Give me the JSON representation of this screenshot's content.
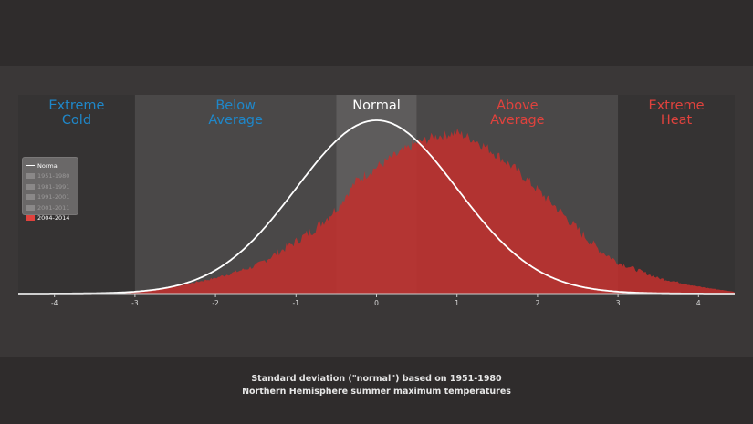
{
  "chart_data": {
    "type": "area",
    "xlabel": "Standard deviation (\"normal\") based on 1951-1980",
    "subtitle": "Northern Hemisphere summer maximum temperatures",
    "xlim": [
      -4.45,
      4.45
    ],
    "x_ticks": [
      "-4",
      "-3",
      "-2",
      "-1",
      "0",
      "1",
      "2",
      "3",
      "4"
    ],
    "bands": [
      {
        "line1": "Extreme",
        "line2": "Cold",
        "from": -4.45,
        "to": -3,
        "color": "#1f87c9",
        "fill": "#353333"
      },
      {
        "line1": "Below",
        "line2": "Average",
        "from": -3,
        "to": -0.5,
        "color": "#1f87c9",
        "fill": "#4a4848"
      },
      {
        "line1": "Normal",
        "line2": "",
        "from": -0.5,
        "to": 0.5,
        "color": "#ffffff",
        "fill": "#5e5c5c"
      },
      {
        "line1": "Above",
        "line2": "Average",
        "from": 0.5,
        "to": 3,
        "color": "#e0423d",
        "fill": "#4a4848"
      },
      {
        "line1": "Extreme",
        "line2": "Heat",
        "from": 3,
        "to": 4.45,
        "color": "#e0423d",
        "fill": "#353333"
      }
    ],
    "series": [
      {
        "name": "Normal",
        "kind": "line",
        "distribution": "normal",
        "mean": 0,
        "sd": 1,
        "color": "#ffffff"
      },
      {
        "name": "2004-2014",
        "kind": "area",
        "color": "#c0302d",
        "x": [
          -4.45,
          -4,
          -3.5,
          -3,
          -2.5,
          -2,
          -1.5,
          -1,
          -0.75,
          -0.5,
          -0.25,
          0,
          0.25,
          0.5,
          0.75,
          1,
          1.25,
          1.5,
          1.75,
          2,
          2.25,
          2.5,
          2.75,
          3,
          3.5,
          4,
          4.45
        ],
        "y": [
          0,
          0,
          0.002,
          0.01,
          0.04,
          0.09,
          0.16,
          0.3,
          0.38,
          0.49,
          0.65,
          0.73,
          0.8,
          0.87,
          0.91,
          0.93,
          0.88,
          0.8,
          0.71,
          0.6,
          0.49,
          0.37,
          0.26,
          0.18,
          0.09,
          0.04,
          0.01
        ]
      }
    ],
    "legend": {
      "placement": "left",
      "entries": [
        {
          "label": "Normal",
          "color": "#ffffff",
          "kind": "line"
        },
        {
          "label": "1951-1980",
          "color": "#8a8888",
          "kind": "swatch"
        },
        {
          "label": "1981-1991",
          "color": "#8a8888",
          "kind": "swatch"
        },
        {
          "label": "1991-2001",
          "color": "#8a8888",
          "kind": "swatch"
        },
        {
          "label": "2001-2011",
          "color": "#8a8888",
          "kind": "swatch"
        },
        {
          "label": "2004-2014",
          "color": "#e0423d",
          "kind": "swatch"
        }
      ]
    }
  }
}
